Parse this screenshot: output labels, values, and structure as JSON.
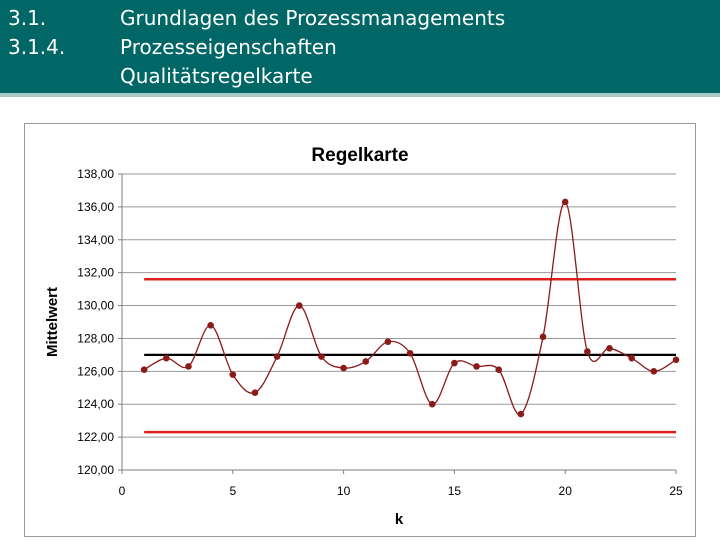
{
  "header": {
    "numbers": [
      "3.1.",
      "3.1.4."
    ],
    "titles": [
      "Grundlagen des Prozessmanagements",
      "Prozesseigenschaften",
      "Qualitätsregelkarte"
    ]
  },
  "colors": {
    "header_bg": "#006666",
    "series": "#8b1a1a",
    "limits": "#e0201e",
    "center": "#000000"
  },
  "chart_data": {
    "type": "line",
    "title": "Regelkarte",
    "xlabel": "k",
    "ylabel": "Mittelwert",
    "xlim": [
      0,
      25
    ],
    "ylim": [
      120,
      138
    ],
    "xticks": [
      "0",
      "5",
      "10",
      "15",
      "20",
      "25"
    ],
    "yticks": [
      "120,00",
      "122,00",
      "124,00",
      "126,00",
      "128,00",
      "130,00",
      "132,00",
      "134,00",
      "136,00",
      "138,00"
    ],
    "grid": "horizontal",
    "x": [
      1,
      2,
      3,
      4,
      5,
      6,
      7,
      8,
      9,
      10,
      11,
      12,
      13,
      14,
      15,
      16,
      17,
      18,
      19,
      20,
      21,
      22,
      23,
      24,
      25
    ],
    "values": [
      126.1,
      126.8,
      126.3,
      128.8,
      125.8,
      124.7,
      126.9,
      130.0,
      126.9,
      126.2,
      126.6,
      127.8,
      127.1,
      124.0,
      126.5,
      126.3,
      126.1,
      123.4,
      128.1,
      136.3,
      127.2,
      127.4,
      126.8,
      126.0,
      126.7
    ],
    "center_line": 127.0,
    "upper_limit": 131.6,
    "lower_limit": 122.3,
    "limit_x_range": [
      1,
      25
    ]
  }
}
